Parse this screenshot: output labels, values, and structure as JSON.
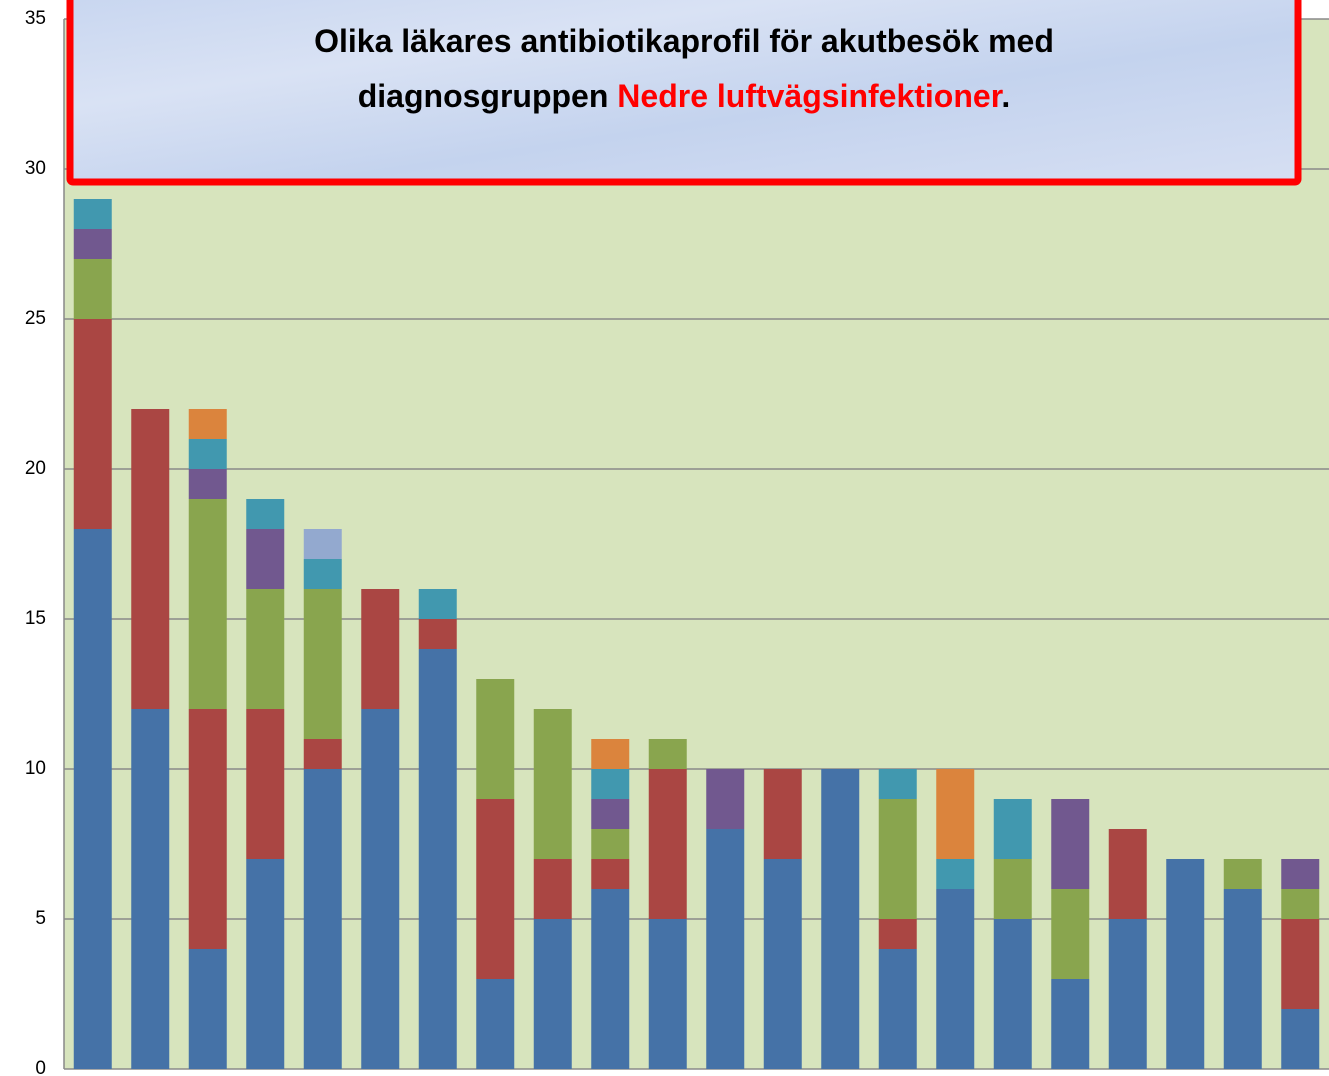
{
  "chart_data": {
    "type": "stacked_bar",
    "title": {
      "line1": "Olika läkares antibiotikaprofil för akutbesök med",
      "line2": "diagnosgruppen",
      "highlight": "Nedre luftvägsinfektioner",
      "end": "."
    },
    "categories": [
      null,
      null,
      null,
      null,
      null,
      null,
      null,
      null,
      null,
      null,
      null,
      null,
      null,
      null,
      null,
      null,
      null,
      null,
      null,
      null,
      null,
      null
    ],
    "series": [
      {
        "color": "#4572a7",
        "values": [
          18,
          12,
          4,
          7,
          10,
          12,
          14,
          3,
          5,
          6,
          5,
          8,
          7,
          10,
          4,
          6,
          5,
          3,
          5,
          7,
          6,
          2
        ]
      },
      {
        "color": "#aa4643",
        "values": [
          7,
          10,
          8,
          5,
          1,
          4,
          1,
          6,
          2,
          1,
          5,
          0,
          3,
          0,
          1,
          0,
          0,
          0,
          3,
          0,
          0,
          3
        ]
      },
      {
        "color": "#89a54e",
        "values": [
          2,
          0,
          7,
          4,
          5,
          0,
          0,
          4,
          5,
          1,
          1,
          0,
          0,
          0,
          4,
          0,
          2,
          3,
          0,
          0,
          1,
          1
        ]
      },
      {
        "color": "#71588f",
        "values": [
          1,
          0,
          1,
          2,
          0,
          0,
          0,
          0,
          0,
          1,
          0,
          2,
          0,
          0,
          0,
          0,
          0,
          3,
          0,
          0,
          0,
          1
        ]
      },
      {
        "color": "#4198af",
        "values": [
          1,
          0,
          1,
          1,
          1,
          0,
          1,
          0,
          0,
          1,
          0,
          0,
          0,
          0,
          1,
          1,
          2,
          0,
          0,
          0,
          0,
          0
        ]
      },
      {
        "color": "#db843d",
        "values": [
          0,
          0,
          1,
          0,
          0,
          0,
          0,
          0,
          0,
          1,
          0,
          0,
          0,
          0,
          0,
          3,
          0,
          0,
          0,
          0,
          0,
          0
        ]
      },
      {
        "color": "#93a9cf",
        "values": [
          0,
          0,
          0,
          0,
          1,
          0,
          0,
          0,
          0,
          0,
          0,
          0,
          0,
          0,
          0,
          0,
          0,
          0,
          0,
          0,
          0,
          0
        ]
      }
    ],
    "ylim": [
      0,
      35
    ],
    "yticks": [
      0,
      5,
      10,
      15,
      20,
      25,
      30,
      35
    ],
    "grid": true
  }
}
